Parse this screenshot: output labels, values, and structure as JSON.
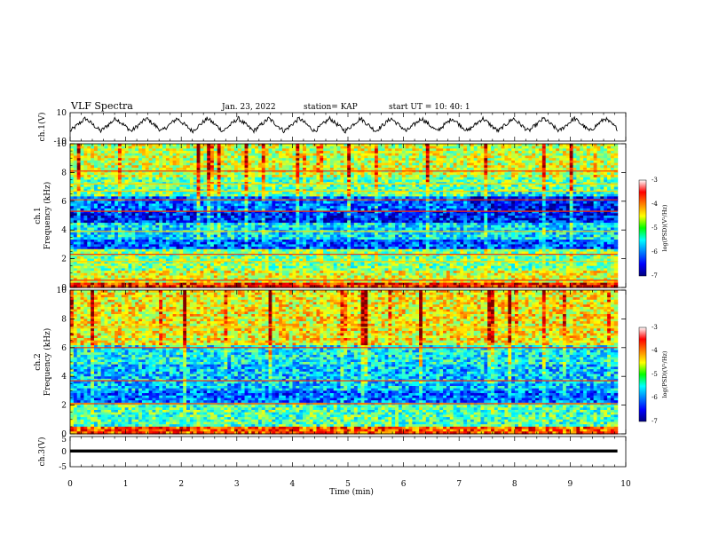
{
  "header": {
    "title": "VLF Spectra",
    "date": "Jan. 23, 2022",
    "station": "station= KAP",
    "start": "start  UT =   10: 40: 1"
  },
  "chart_data": [
    {
      "type": "line",
      "name": "ch1-waveform",
      "ylabel": "ch.1(V)",
      "ylim": [
        -10,
        10
      ],
      "yticks": [
        "10",
        "-10"
      ],
      "xlim": [
        0,
        10
      ],
      "x_extent": [
        0,
        9.85
      ],
      "approx_pattern": {
        "mean": 1.5,
        "oscillation_amplitude": 4.5,
        "oscillation_period_min": 0.55,
        "noise_amplitude": 1.5
      }
    },
    {
      "type": "heatmap",
      "name": "ch1-spectrogram",
      "ylabel_top": "ch.1",
      "ylabel": "Frequency  (kHz)",
      "ylim": [
        0,
        10
      ],
      "yticks": [
        "0",
        "2",
        "4",
        "6",
        "8",
        "10"
      ],
      "xlim": [
        0,
        10
      ],
      "x_extent": [
        0,
        9.85
      ],
      "colorbar": {
        "label": "log(PSD)(V²/Hz)",
        "range": [
          -7,
          -3
        ],
        "ticks": [
          "-3",
          "-4",
          "-5",
          "-6",
          "-7"
        ]
      },
      "approx_bands": [
        {
          "f0": 0.0,
          "f1": 0.4,
          "level": -3.6
        },
        {
          "f0": 0.4,
          "f1": 1.1,
          "level": -4.6
        },
        {
          "f0": 1.1,
          "f1": 2.6,
          "level": -5.0
        },
        {
          "f0": 2.6,
          "f1": 3.4,
          "level": -6.2
        },
        {
          "f0": 3.4,
          "f1": 4.5,
          "level": -5.6
        },
        {
          "f0": 4.5,
          "f1": 5.4,
          "level": -6.4
        },
        {
          "f0": 5.4,
          "f1": 6.4,
          "level": -6.1
        },
        {
          "f0": 6.4,
          "f1": 7.6,
          "level": -5.1
        },
        {
          "f0": 7.6,
          "f1": 10.0,
          "level": -4.7
        }
      ],
      "approx_lines_khz": [
        0.5,
        1.8,
        2.3,
        3.9,
        5.3,
        6.1,
        6.7,
        7.2,
        8.1
      ]
    },
    {
      "type": "heatmap",
      "name": "ch2-spectrogram",
      "ylabel_top": "ch.2",
      "ylabel": "Frequency  (kHz)",
      "ylim": [
        0,
        10
      ],
      "yticks": [
        "0",
        "2",
        "4",
        "6",
        "8",
        "10"
      ],
      "xlim": [
        0,
        10
      ],
      "x_extent": [
        0,
        9.85
      ],
      "colorbar": {
        "label": "log(PSD)(V²/Hz)",
        "range": [
          -7,
          -3
        ],
        "ticks": [
          "-3",
          "-4",
          "-5",
          "-6",
          "-7"
        ]
      },
      "approx_bands": [
        {
          "f0": 0.0,
          "f1": 0.5,
          "level": -3.8
        },
        {
          "f0": 0.5,
          "f1": 2.2,
          "level": -5.2
        },
        {
          "f0": 2.2,
          "f1": 3.0,
          "level": -6.1
        },
        {
          "f0": 3.0,
          "f1": 4.8,
          "level": -5.7
        },
        {
          "f0": 4.8,
          "f1": 6.2,
          "level": -5.5
        },
        {
          "f0": 6.2,
          "f1": 10.0,
          "level": -4.5
        }
      ],
      "approx_lines_khz": [
        2.1,
        3.7,
        6.0,
        7.4
      ]
    },
    {
      "type": "line",
      "name": "ch3-waveform",
      "ylabel": "ch.3(V)",
      "ylim": [
        -5,
        5
      ],
      "yticks": [
        "5",
        "0",
        "-5"
      ],
      "xlim": [
        0,
        10
      ],
      "x_extent": [
        0,
        9.85
      ],
      "approx_pattern": {
        "mean": 0.2,
        "band_halfwidth": 0.5
      }
    }
  ],
  "xaxis": {
    "label": "Time  (min)",
    "ticks": [
      "0",
      "1",
      "2",
      "3",
      "4",
      "5",
      "6",
      "7",
      "8",
      "9",
      "10"
    ]
  }
}
